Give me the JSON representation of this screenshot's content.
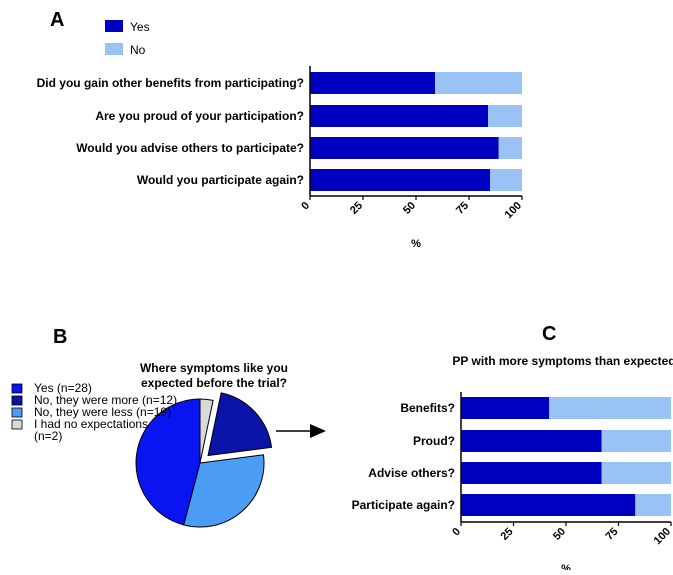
{
  "colors": {
    "yes": "#0000c0",
    "no": "#99c2f5",
    "pie_yes": "#0a14f0",
    "pie_more": "#0b14a8",
    "pie_less": "#4a9cf5",
    "pie_none": "#d9d9d9",
    "axis": "#000000"
  },
  "chart_data": [
    {
      "panel": "A",
      "type": "bar",
      "orientation": "horizontal",
      "stacked": true,
      "categories": [
        "Did you gain other benefits from participating?",
        "Are you proud of your participation?",
        "Would you advise others to participate?",
        "Would you participate again?"
      ],
      "series": [
        {
          "name": "Yes",
          "color": "#0000c0",
          "values": [
            59,
            84,
            89,
            85
          ]
        },
        {
          "name": "No",
          "color": "#99c2f5",
          "values": [
            41,
            16,
            11,
            15
          ]
        }
      ],
      "xlabel": "%",
      "xlim": [
        0,
        100
      ],
      "xticks": [
        "0",
        "25",
        "50",
        "75",
        "100"
      ],
      "legend": {
        "placement": "top-left",
        "entries": [
          "Yes",
          "No"
        ]
      }
    },
    {
      "panel": "B",
      "type": "pie",
      "title": "Where symptoms like you expected before the trial?",
      "slices": [
        {
          "label": "Yes (n=28)",
          "value": 28,
          "color": "#0a14f0"
        },
        {
          "label": "No, they were more (n=12)",
          "value": 12,
          "color": "#0b14a8",
          "exploded": true
        },
        {
          "label": "No, they were less (n=19)",
          "value": 19,
          "color": "#4a9cf5"
        },
        {
          "label": "I had no expectations (n=2)",
          "value": 2,
          "color": "#d9d9d9"
        }
      ],
      "legend": {
        "placement": "left"
      }
    },
    {
      "panel": "C",
      "type": "bar",
      "orientation": "horizontal",
      "stacked": true,
      "title": "PP with more symptoms than expected:",
      "categories": [
        "Benefits?",
        "Proud?",
        "Advise others?",
        "Participate again?"
      ],
      "series": [
        {
          "name": "Yes",
          "color": "#0000c0",
          "values": [
            42,
            67,
            67,
            83
          ]
        },
        {
          "name": "No",
          "color": "#99c2f5",
          "values": [
            58,
            33,
            33,
            17
          ]
        }
      ],
      "xlabel": "%",
      "xlim": [
        0,
        100
      ],
      "xticks": [
        "0",
        "25",
        "50",
        "75",
        "100"
      ]
    }
  ]
}
